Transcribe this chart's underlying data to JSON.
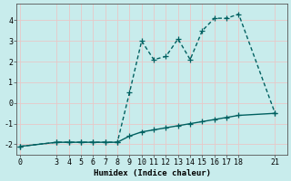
{
  "xlabel": "Humidex (Indice chaleur)",
  "bg_color": "#c8ecec",
  "grid_color": "#e8c8c8",
  "line_color": "#006060",
  "x_upper": [
    0,
    3,
    4,
    5,
    6,
    7,
    8,
    9,
    10,
    11,
    12,
    13,
    14,
    15,
    16,
    17,
    18,
    21
  ],
  "y_upper": [
    -2.1,
    -1.9,
    -1.9,
    -1.9,
    -1.9,
    -1.9,
    -1.9,
    0.5,
    3.0,
    2.1,
    2.25,
    3.1,
    2.1,
    3.5,
    4.1,
    4.1,
    4.3,
    -0.5
  ],
  "x_lower": [
    0,
    3,
    4,
    5,
    6,
    7,
    8,
    9,
    10,
    11,
    12,
    13,
    14,
    15,
    16,
    17,
    18,
    21
  ],
  "y_lower": [
    -2.1,
    -1.9,
    -1.9,
    -1.9,
    -1.9,
    -1.9,
    -1.9,
    -1.6,
    -1.4,
    -1.3,
    -1.2,
    -1.1,
    -1.0,
    -0.9,
    -0.8,
    -0.7,
    -0.6,
    -0.5
  ],
  "xticks": [
    0,
    3,
    4,
    5,
    6,
    7,
    8,
    9,
    10,
    11,
    12,
    13,
    14,
    15,
    16,
    17,
    18,
    21
  ],
  "yticks": [
    -2,
    -1,
    0,
    1,
    2,
    3,
    4
  ],
  "ylim": [
    -2.5,
    4.8
  ],
  "xlim": [
    -0.3,
    22
  ],
  "marker": "+",
  "markersize": 4,
  "linewidth": 1.0,
  "label_fontsize": 6.5,
  "tick_fontsize": 6.0
}
